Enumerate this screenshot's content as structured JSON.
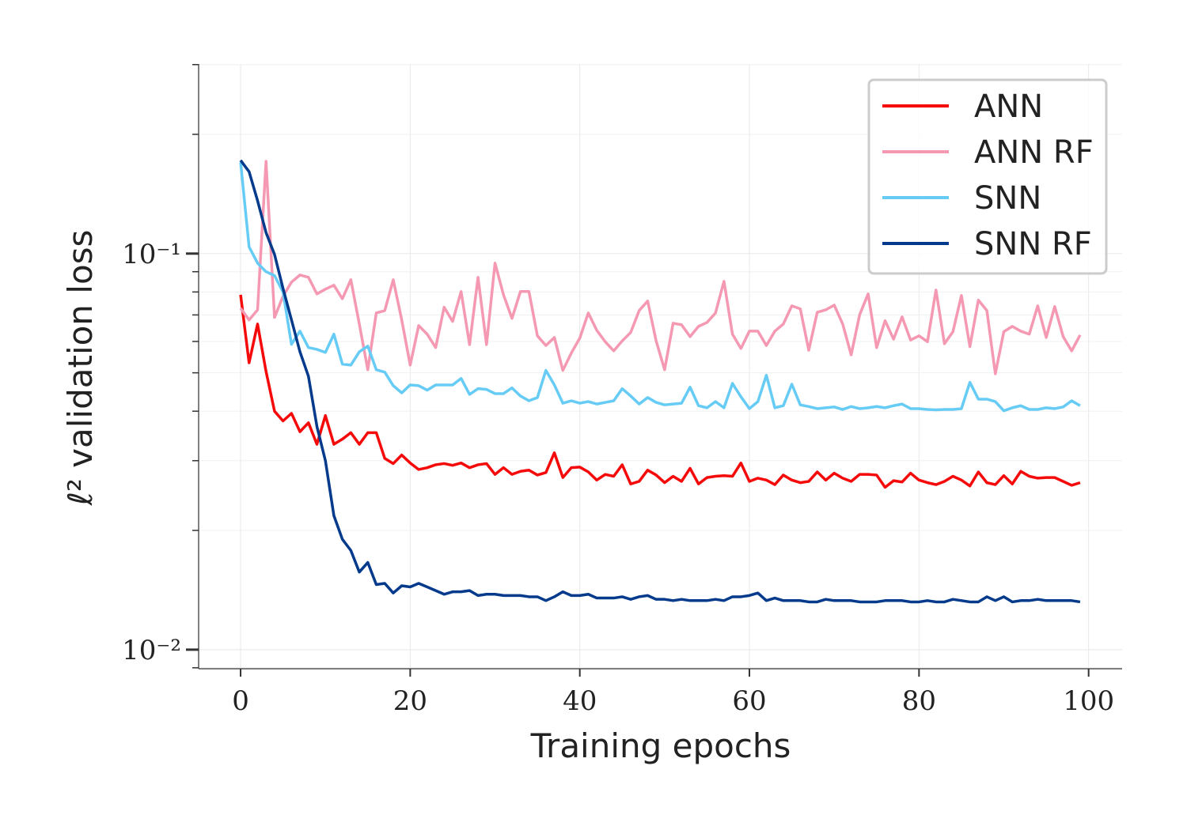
{
  "chart_data": {
    "type": "line",
    "xlabel": "Training epochs",
    "ylabel": "ℓ² validation loss",
    "log_y": true,
    "grid": true,
    "legend": "upper right",
    "xlim": [
      -4.95,
      103.95
    ],
    "ylim": [
      0.00895,
      0.301
    ],
    "xticks": [
      0,
      20,
      40,
      60,
      80,
      100
    ],
    "yticks": [
      {
        "value": 0.01,
        "label": "10⁻²"
      },
      {
        "value": 0.1,
        "label": "10⁻¹"
      }
    ],
    "yminorticks": [
      0.009,
      0.02,
      0.03,
      0.04,
      0.05,
      0.06,
      0.07,
      0.08,
      0.09,
      0.2,
      0.3
    ],
    "x": [
      0,
      1,
      2,
      3,
      4,
      5,
      6,
      7,
      8,
      9,
      10,
      11,
      12,
      13,
      14,
      15,
      16,
      17,
      18,
      19,
      20,
      21,
      22,
      23,
      24,
      25,
      26,
      27,
      28,
      29,
      30,
      31,
      32,
      33,
      34,
      35,
      36,
      37,
      38,
      39,
      40,
      41,
      42,
      43,
      44,
      45,
      46,
      47,
      48,
      49,
      50,
      51,
      52,
      53,
      54,
      55,
      56,
      57,
      58,
      59,
      60,
      61,
      62,
      63,
      64,
      65,
      66,
      67,
      68,
      69,
      70,
      71,
      72,
      73,
      74,
      75,
      76,
      77,
      78,
      79,
      80,
      81,
      82,
      83,
      84,
      85,
      86,
      87,
      88,
      89,
      90,
      91,
      92,
      93,
      94,
      95,
      96,
      97,
      98,
      99
    ],
    "series": [
      {
        "name": "ANN",
        "color": "#f50a0a",
        "values": [
          0.0787,
          0.053,
          0.0664,
          0.0504,
          0.04,
          0.0378,
          0.0395,
          0.0355,
          0.0374,
          0.033,
          0.039,
          0.033,
          0.034,
          0.0353,
          0.033,
          0.0353,
          0.0353,
          0.0304,
          0.0295,
          0.031,
          0.0296,
          0.0285,
          0.0288,
          0.0293,
          0.0295,
          0.0292,
          0.0296,
          0.0288,
          0.0293,
          0.0295,
          0.0277,
          0.0288,
          0.0277,
          0.0282,
          0.0284,
          0.0276,
          0.028,
          0.0314,
          0.0272,
          0.0288,
          0.0289,
          0.0281,
          0.0268,
          0.0277,
          0.0274,
          0.0293,
          0.0262,
          0.0266,
          0.0284,
          0.0276,
          0.0264,
          0.0274,
          0.0266,
          0.0287,
          0.0262,
          0.0272,
          0.0274,
          0.0275,
          0.0274,
          0.0296,
          0.0266,
          0.0271,
          0.0268,
          0.0261,
          0.0276,
          0.0268,
          0.0264,
          0.0266,
          0.0281,
          0.0268,
          0.0279,
          0.0271,
          0.0266,
          0.0277,
          0.0277,
          0.0276,
          0.0257,
          0.0267,
          0.0265,
          0.0279,
          0.0268,
          0.0264,
          0.0261,
          0.0266,
          0.0274,
          0.0268,
          0.0259,
          0.0281,
          0.0264,
          0.0261,
          0.0275,
          0.0262,
          0.0282,
          0.0274,
          0.0271,
          0.0272,
          0.0272,
          0.0266,
          0.026,
          0.0264
        ]
      },
      {
        "name": "ANN RF",
        "color": "#f599b3",
        "values": [
          0.0728,
          0.068,
          0.0721,
          0.171,
          0.069,
          0.078,
          0.0847,
          0.0883,
          0.0871,
          0.0791,
          0.0813,
          0.0832,
          0.0769,
          0.0859,
          0.0664,
          0.0509,
          0.0708,
          0.0718,
          0.0859,
          0.068,
          0.0523,
          0.0658,
          0.0626,
          0.0579,
          0.0732,
          0.0674,
          0.0802,
          0.0589,
          0.0871,
          0.0589,
          0.0946,
          0.0787,
          0.0686,
          0.0802,
          0.0802,
          0.062,
          0.0586,
          0.0614,
          0.0507,
          0.0561,
          0.0612,
          0.0708,
          0.064,
          0.0599,
          0.0568,
          0.0602,
          0.0632,
          0.0718,
          0.0759,
          0.0602,
          0.0509,
          0.0667,
          0.0661,
          0.0617,
          0.0655,
          0.067,
          0.0708,
          0.0851,
          0.0626,
          0.0576,
          0.0637,
          0.0637,
          0.0586,
          0.0637,
          0.0664,
          0.0738,
          0.0725,
          0.057,
          0.0711,
          0.0721,
          0.0741,
          0.0664,
          0.0555,
          0.0701,
          0.0791,
          0.0579,
          0.0677,
          0.0608,
          0.0692,
          0.0605,
          0.062,
          0.0599,
          0.0809,
          0.0592,
          0.0635,
          0.0784,
          0.0582,
          0.0763,
          0.0718,
          0.0497,
          0.0635,
          0.0655,
          0.0637,
          0.0626,
          0.0738,
          0.0614,
          0.0735,
          0.0617,
          0.0568,
          0.0623
        ]
      },
      {
        "name": "SNN",
        "color": "#66ccf5",
        "values": [
          0.17,
          0.104,
          0.0946,
          0.09,
          0.088,
          0.08,
          0.059,
          0.0637,
          0.0579,
          0.0573,
          0.0563,
          0.0626,
          0.0526,
          0.0523,
          0.0565,
          0.0584,
          0.0509,
          0.0502,
          0.0464,
          0.0445,
          0.0466,
          0.0464,
          0.0452,
          0.0466,
          0.0466,
          0.0466,
          0.0484,
          0.0441,
          0.0456,
          0.0454,
          0.0443,
          0.0443,
          0.0458,
          0.0437,
          0.0425,
          0.0433,
          0.0507,
          0.0466,
          0.0419,
          0.0425,
          0.0419,
          0.0423,
          0.0417,
          0.0421,
          0.0425,
          0.0456,
          0.0437,
          0.0417,
          0.0433,
          0.0421,
          0.0415,
          0.0417,
          0.0419,
          0.046,
          0.0413,
          0.0408,
          0.0423,
          0.0408,
          0.047,
          0.0435,
          0.0406,
          0.0423,
          0.0493,
          0.0408,
          0.0413,
          0.0468,
          0.0415,
          0.0411,
          0.0406,
          0.0408,
          0.041,
          0.0404,
          0.0411,
          0.0406,
          0.0408,
          0.0411,
          0.0408,
          0.0413,
          0.0417,
          0.0406,
          0.0406,
          0.0404,
          0.0403,
          0.0404,
          0.0404,
          0.0406,
          0.0473,
          0.0429,
          0.0429,
          0.0423,
          0.0401,
          0.0408,
          0.0413,
          0.0404,
          0.0404,
          0.0408,
          0.0406,
          0.041,
          0.0425,
          0.0413
        ]
      },
      {
        "name": "SNN RF",
        "color": "#033a8c",
        "values": [
          0.172,
          0.161,
          0.136,
          0.113,
          0.0995,
          0.0817,
          0.068,
          0.0565,
          0.049,
          0.0366,
          0.03,
          0.0218,
          0.019,
          0.0178,
          0.0157,
          0.0166,
          0.0146,
          0.0147,
          0.0139,
          0.0145,
          0.0144,
          0.0147,
          0.0144,
          0.0141,
          0.0138,
          0.014,
          0.014,
          0.0141,
          0.0137,
          0.0138,
          0.0138,
          0.0137,
          0.0137,
          0.0137,
          0.0136,
          0.0136,
          0.0133,
          0.0136,
          0.014,
          0.0137,
          0.0137,
          0.0138,
          0.0135,
          0.0135,
          0.0135,
          0.0136,
          0.0134,
          0.0136,
          0.0137,
          0.0134,
          0.0134,
          0.0133,
          0.0134,
          0.0133,
          0.0133,
          0.0133,
          0.0134,
          0.0133,
          0.0136,
          0.0136,
          0.0137,
          0.0139,
          0.0133,
          0.0135,
          0.0133,
          0.0133,
          0.0133,
          0.0132,
          0.0132,
          0.0134,
          0.0133,
          0.0133,
          0.0133,
          0.0132,
          0.0132,
          0.0132,
          0.0133,
          0.0133,
          0.0133,
          0.0132,
          0.0132,
          0.0133,
          0.0132,
          0.0132,
          0.0134,
          0.0133,
          0.0132,
          0.0132,
          0.0136,
          0.0133,
          0.0136,
          0.0132,
          0.0133,
          0.0133,
          0.0134,
          0.0133,
          0.0133,
          0.0133,
          0.0133,
          0.0132
        ]
      }
    ]
  }
}
